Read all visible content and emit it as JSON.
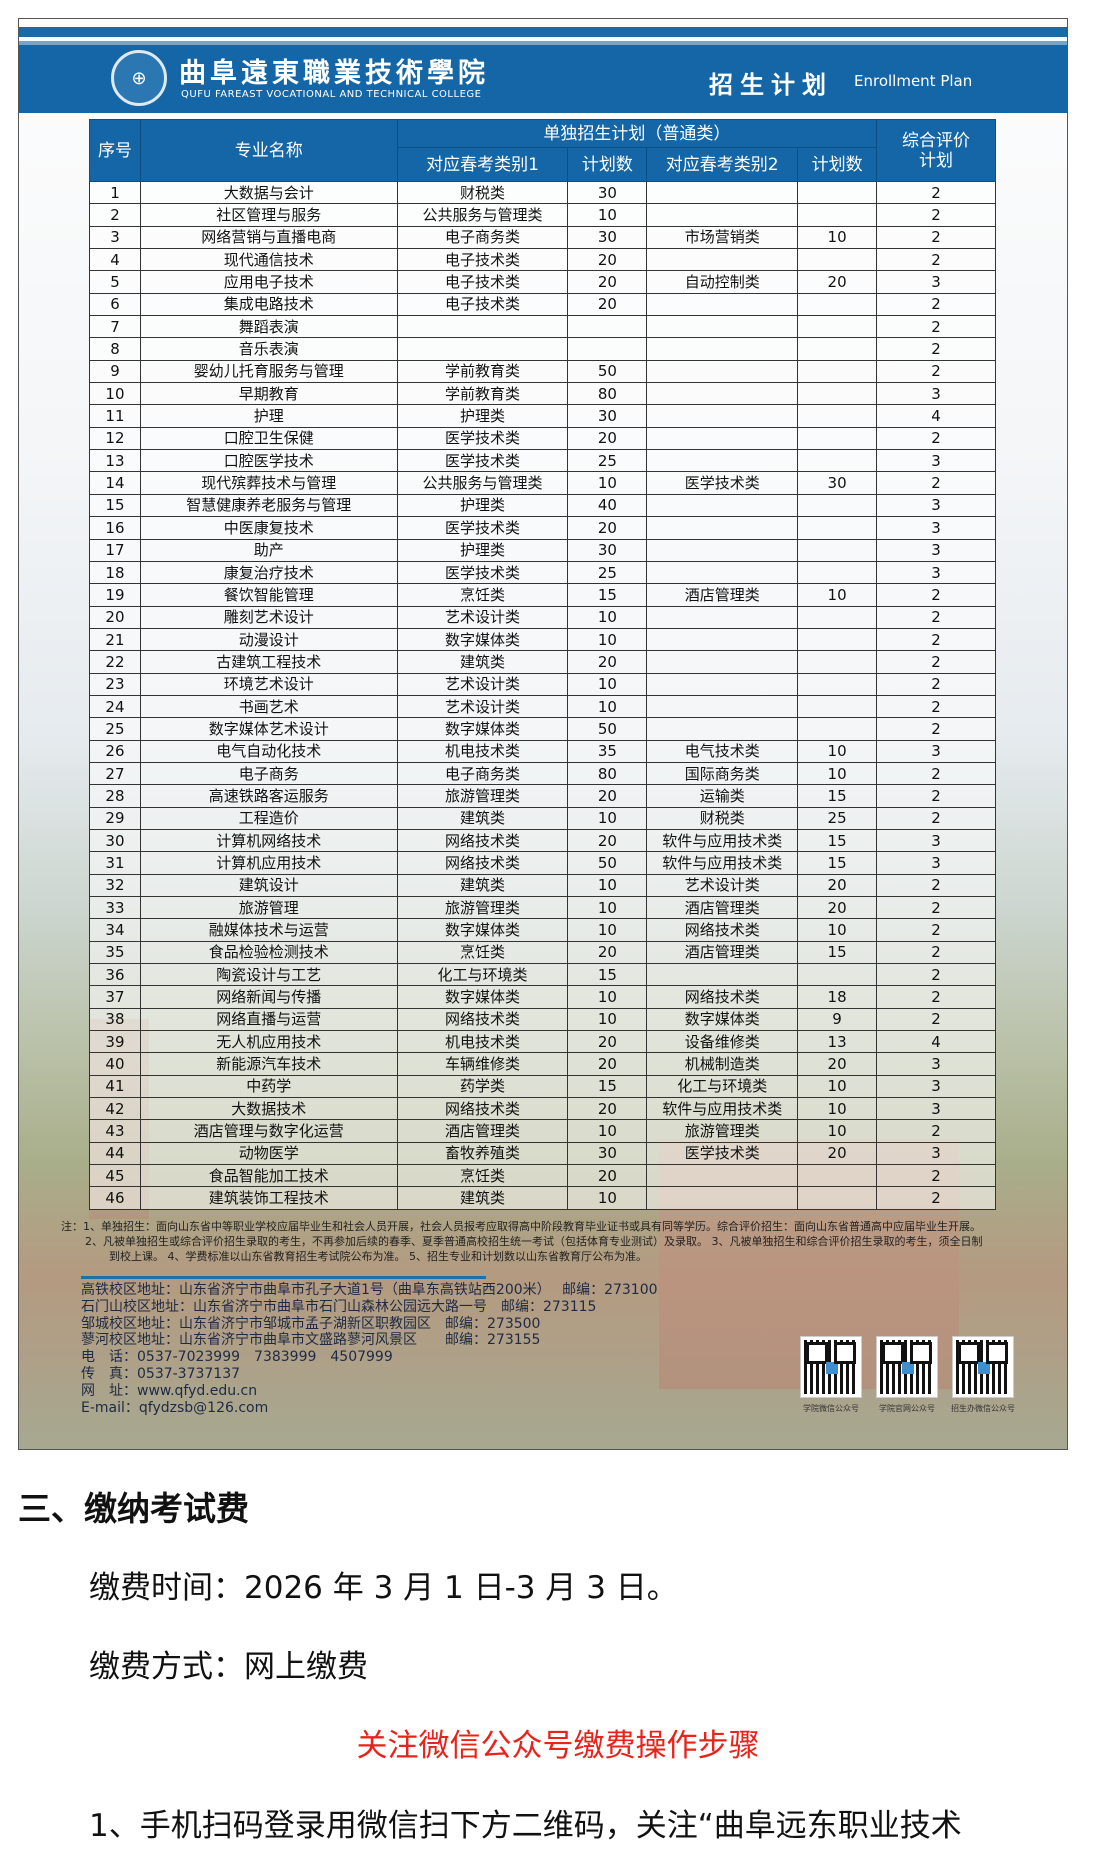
{
  "poster": {
    "college_cn": "曲阜遠東職業技術學院",
    "college_en": "QUFU FAREAST VOCATIONAL AND TECHNICAL COLLEGE",
    "plan_cn": "招生计划",
    "plan_en": "Enrollment Plan",
    "colors": {
      "brand_blue": "#1466a6"
    },
    "table": {
      "headers": {
        "no": "序号",
        "major": "专业名称",
        "group": "单独招生计划（普通类）",
        "cat1": "对应春考类别1",
        "num1": "计划数",
        "cat2": "对应春考类别2",
        "num2": "计划数",
        "comp": "综合评价计划"
      },
      "rows": [
        [
          "1",
          "大数据与会计",
          "财税类",
          "30",
          "",
          "",
          "2"
        ],
        [
          "2",
          "社区管理与服务",
          "公共服务与管理类",
          "10",
          "",
          "",
          "2"
        ],
        [
          "3",
          "网络营销与直播电商",
          "电子商务类",
          "30",
          "市场营销类",
          "10",
          "2"
        ],
        [
          "4",
          "现代通信技术",
          "电子技术类",
          "20",
          "",
          "",
          "2"
        ],
        [
          "5",
          "应用电子技术",
          "电子技术类",
          "20",
          "自动控制类",
          "20",
          "3"
        ],
        [
          "6",
          "集成电路技术",
          "电子技术类",
          "20",
          "",
          "",
          "2"
        ],
        [
          "7",
          "舞蹈表演",
          "",
          "",
          "",
          "",
          "2"
        ],
        [
          "8",
          "音乐表演",
          "",
          "",
          "",
          "",
          "2"
        ],
        [
          "9",
          "婴幼儿托育服务与管理",
          "学前教育类",
          "50",
          "",
          "",
          "2"
        ],
        [
          "10",
          "早期教育",
          "学前教育类",
          "80",
          "",
          "",
          "3"
        ],
        [
          "11",
          "护理",
          "护理类",
          "30",
          "",
          "",
          "4"
        ],
        [
          "12",
          "口腔卫生保健",
          "医学技术类",
          "20",
          "",
          "",
          "2"
        ],
        [
          "13",
          "口腔医学技术",
          "医学技术类",
          "25",
          "",
          "",
          "3"
        ],
        [
          "14",
          "现代殡葬技术与管理",
          "公共服务与管理类",
          "10",
          "医学技术类",
          "30",
          "2"
        ],
        [
          "15",
          "智慧健康养老服务与管理",
          "护理类",
          "40",
          "",
          "",
          "3"
        ],
        [
          "16",
          "中医康复技术",
          "医学技术类",
          "20",
          "",
          "",
          "3"
        ],
        [
          "17",
          "助产",
          "护理类",
          "30",
          "",
          "",
          "3"
        ],
        [
          "18",
          "康复治疗技术",
          "医学技术类",
          "25",
          "",
          "",
          "3"
        ],
        [
          "19",
          "餐饮智能管理",
          "烹饪类",
          "15",
          "酒店管理类",
          "10",
          "2"
        ],
        [
          "20",
          "雕刻艺术设计",
          "艺术设计类",
          "10",
          "",
          "",
          "2"
        ],
        [
          "21",
          "动漫设计",
          "数字媒体类",
          "10",
          "",
          "",
          "2"
        ],
        [
          "22",
          "古建筑工程技术",
          "建筑类",
          "20",
          "",
          "",
          "2"
        ],
        [
          "23",
          "环境艺术设计",
          "艺术设计类",
          "10",
          "",
          "",
          "2"
        ],
        [
          "24",
          "书画艺术",
          "艺术设计类",
          "10",
          "",
          "",
          "2"
        ],
        [
          "25",
          "数字媒体艺术设计",
          "数字媒体类",
          "50",
          "",
          "",
          "2"
        ],
        [
          "26",
          "电气自动化技术",
          "机电技术类",
          "35",
          "电气技术类",
          "10",
          "3"
        ],
        [
          "27",
          "电子商务",
          "电子商务类",
          "80",
          "国际商务类",
          "10",
          "2"
        ],
        [
          "28",
          "高速铁路客运服务",
          "旅游管理类",
          "20",
          "运输类",
          "15",
          "2"
        ],
        [
          "29",
          "工程造价",
          "建筑类",
          "10",
          "财税类",
          "25",
          "2"
        ],
        [
          "30",
          "计算机网络技术",
          "网络技术类",
          "20",
          "软件与应用技术类",
          "15",
          "3"
        ],
        [
          "31",
          "计算机应用技术",
          "网络技术类",
          "50",
          "软件与应用技术类",
          "15",
          "3"
        ],
        [
          "32",
          "建筑设计",
          "建筑类",
          "10",
          "艺术设计类",
          "20",
          "2"
        ],
        [
          "33",
          "旅游管理",
          "旅游管理类",
          "10",
          "酒店管理类",
          "20",
          "2"
        ],
        [
          "34",
          "融媒体技术与运营",
          "数字媒体类",
          "10",
          "网络技术类",
          "10",
          "2"
        ],
        [
          "35",
          "食品检验检测技术",
          "烹饪类",
          "20",
          "酒店管理类",
          "15",
          "2"
        ],
        [
          "36",
          "陶瓷设计与工艺",
          "化工与环境类",
          "15",
          "",
          "",
          "2"
        ],
        [
          "37",
          "网络新闻与传播",
          "数字媒体类",
          "10",
          "网络技术类",
          "18",
          "2"
        ],
        [
          "38",
          "网络直播与运营",
          "网络技术类",
          "10",
          "数字媒体类",
          "9",
          "2"
        ],
        [
          "39",
          "无人机应用技术",
          "机电技术类",
          "20",
          "设备维修类",
          "13",
          "4"
        ],
        [
          "40",
          "新能源汽车技术",
          "车辆维修类",
          "20",
          "机械制造类",
          "20",
          "3"
        ],
        [
          "41",
          "中药学",
          "药学类",
          "15",
          "化工与环境类",
          "10",
          "3"
        ],
        [
          "42",
          "大数据技术",
          "网络技术类",
          "20",
          "软件与应用技术类",
          "10",
          "3"
        ],
        [
          "43",
          "酒店管理与数字化运营",
          "酒店管理类",
          "10",
          "旅游管理类",
          "10",
          "2"
        ],
        [
          "44",
          "动物医学",
          "畜牧养殖类",
          "30",
          "医学技术类",
          "20",
          "3"
        ],
        [
          "45",
          "食品智能加工技术",
          "烹饪类",
          "20",
          "",
          "",
          "2"
        ],
        [
          "46",
          "建筑装饰工程技术",
          "建筑类",
          "10",
          "",
          "",
          "2"
        ]
      ]
    },
    "notes": [
      "注：1、单独招生：面向山东省中等职业学校应届毕业生和社会人员开展，社会人员报考应取得高中阶段教育毕业证书或具有同等学历。综合评价招生：面向山东省普通高中应届毕业生开展。",
      "2、凡被单独招生或综合评价招生录取的考生，不再参加后续的春季、夏季普通高校招生统一考试（包括体育专业测试）及录取。 3、凡被单独招生和综合评价招生录取的考生，须全日制",
      "到校上课。 4、学费标准以山东省教育招生考试院公布为准。 5、招生专业和计划数以山东省教育厅公布为准。"
    ],
    "addresses": [
      "高铁校区地址：山东省济宁市曲阜市孔子大道1号（曲阜东高铁站西200米）　 邮编：273100",
      "石门山校区地址：山东省济宁市曲阜市石门山森林公园远大路一号　邮编：273115",
      "邹城校区地址：山东省济宁市邹城市孟子湖新区职教园区　邮编：273500",
      "蓼河校区地址：山东省济宁市曲阜市文盛路蓼河风景区　　邮编：273155",
      "电　话：0537-7023999　7383999　4507999",
      "传　真：0537-3737137",
      "网　址：www.qfyd.edu.cn",
      "E-mail：qfydzsb@126.com"
    ],
    "qr_codes": [
      "学院微信公众号",
      "学院官网公众号",
      "招生办微信公众号"
    ]
  },
  "article": {
    "heading": "三、缴纳考试费",
    "time": "缴费时间：2026 年 3 月 1 日-3 月 3 日。",
    "method": "缴费方式：网上缴费",
    "red_title": "关注微信公众号缴费操作步骤",
    "step1": "1、手机扫码登录用微信扫下方二维码，关注“曲阜远东职业技术",
    "colors": {
      "red_title": "#e8231b"
    }
  }
}
